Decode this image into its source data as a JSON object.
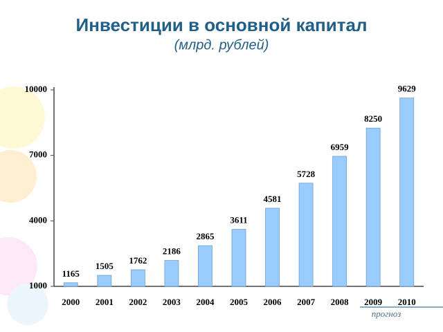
{
  "chart_data": {
    "type": "bar",
    "title": "Инвестиции в основной капитал",
    "subtitle": "(млрд. рублей)",
    "categories": [
      "2000",
      "2001",
      "2002",
      "2003",
      "2004",
      "2005",
      "2006",
      "2007",
      "2008",
      "2009",
      "2010"
    ],
    "values": [
      1165,
      1505,
      1762,
      2186,
      2865,
      3611,
      4581,
      5728,
      6959,
      8250,
      9629
    ],
    "color": "#99ccff",
    "ylim": [
      1000,
      10000
    ],
    "yticks": [
      1000,
      4000,
      7000,
      10000
    ],
    "annotation": "прогноз"
  }
}
